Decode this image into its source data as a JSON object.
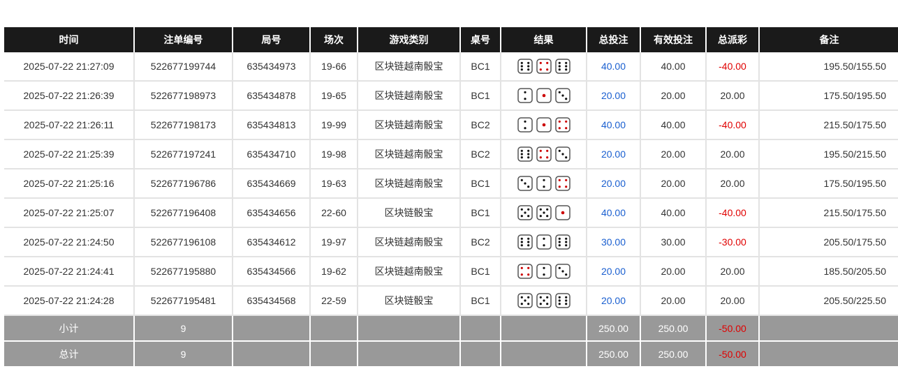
{
  "headers": [
    "时间",
    "注单编号",
    "局号",
    "场次",
    "游戏类别",
    "桌号",
    "结果",
    "总投注",
    "有效投注",
    "总派彩",
    "备注"
  ],
  "rows": [
    {
      "time": "2025-07-22 21:27:09",
      "bet_id": "522677199744",
      "round": "635434973",
      "session": "19-66",
      "game": "区块链越南骰宝",
      "table": "BC1",
      "dice": [
        6,
        4,
        6
      ],
      "bet": "40.00",
      "valid": "40.00",
      "payout": "-40.00",
      "note": "195.50/155.50"
    },
    {
      "time": "2025-07-22 21:26:39",
      "bet_id": "522677198973",
      "round": "635434878",
      "session": "19-65",
      "game": "区块链越南骰宝",
      "table": "BC1",
      "dice": [
        2,
        1,
        3
      ],
      "bet": "20.00",
      "valid": "20.00",
      "payout": "20.00",
      "note": "175.50/195.50"
    },
    {
      "time": "2025-07-22 21:26:11",
      "bet_id": "522677198173",
      "round": "635434813",
      "session": "19-99",
      "game": "区块链越南骰宝",
      "table": "BC2",
      "dice": [
        2,
        1,
        4
      ],
      "bet": "40.00",
      "valid": "40.00",
      "payout": "-40.00",
      "note": "215.50/175.50"
    },
    {
      "time": "2025-07-22 21:25:39",
      "bet_id": "522677197241",
      "round": "635434710",
      "session": "19-98",
      "game": "区块链越南骰宝",
      "table": "BC2",
      "dice": [
        6,
        4,
        3
      ],
      "bet": "20.00",
      "valid": "20.00",
      "payout": "20.00",
      "note": "195.50/215.50"
    },
    {
      "time": "2025-07-22 21:25:16",
      "bet_id": "522677196786",
      "round": "635434669",
      "session": "19-63",
      "game": "区块链越南骰宝",
      "table": "BC1",
      "dice": [
        3,
        2,
        4
      ],
      "bet": "20.00",
      "valid": "20.00",
      "payout": "20.00",
      "note": "175.50/195.50"
    },
    {
      "time": "2025-07-22 21:25:07",
      "bet_id": "522677196408",
      "round": "635434656",
      "session": "22-60",
      "game": "区块链骰宝",
      "table": "BC1",
      "dice": [
        5,
        5,
        1
      ],
      "bet": "40.00",
      "valid": "40.00",
      "payout": "-40.00",
      "note": "215.50/175.50"
    },
    {
      "time": "2025-07-22 21:24:50",
      "bet_id": "522677196108",
      "round": "635434612",
      "session": "19-97",
      "game": "区块链越南骰宝",
      "table": "BC2",
      "dice": [
        6,
        2,
        6
      ],
      "bet": "30.00",
      "valid": "30.00",
      "payout": "-30.00",
      "note": "205.50/175.50"
    },
    {
      "time": "2025-07-22 21:24:41",
      "bet_id": "522677195880",
      "round": "635434566",
      "session": "19-62",
      "game": "区块链越南骰宝",
      "table": "BC1",
      "dice": [
        4,
        2,
        3
      ],
      "bet": "20.00",
      "valid": "20.00",
      "payout": "20.00",
      "note": "185.50/205.50"
    },
    {
      "time": "2025-07-22 21:24:28",
      "bet_id": "522677195481",
      "round": "635434568",
      "session": "22-59",
      "game": "区块链骰宝",
      "table": "BC1",
      "dice": [
        5,
        5,
        6
      ],
      "bet": "20.00",
      "valid": "20.00",
      "payout": "20.00",
      "note": "205.50/225.50"
    }
  ],
  "subtotal": {
    "label": "小计",
    "count": "9",
    "bet": "250.00",
    "valid": "250.00",
    "payout": "-50.00"
  },
  "total": {
    "label": "总计",
    "count": "9",
    "bet": "250.00",
    "valid": "250.00",
    "payout": "-50.00"
  },
  "colors": {
    "header_bg": "#1a1a1a",
    "bet_blue": "#1a5fd0",
    "loss_red": "#e00000",
    "summary_bg": "#999999"
  }
}
